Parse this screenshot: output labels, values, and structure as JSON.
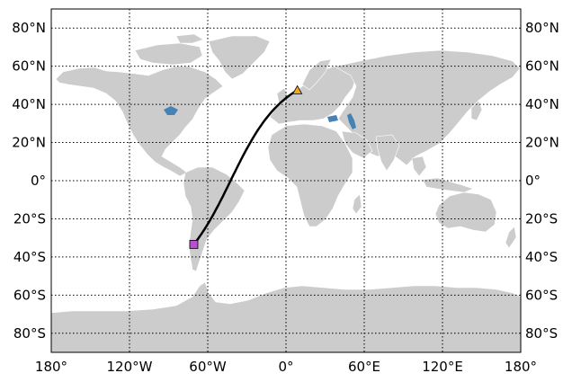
{
  "map": {
    "projection": "equirectangular",
    "lon_range": [
      -180,
      180
    ],
    "lat_range": [
      -90,
      90
    ],
    "land_color": "#cccccc",
    "water_color": "#4682b4",
    "grid": "dotted",
    "lat_ticks": [
      {
        "lat": 80,
        "label": "80°N"
      },
      {
        "lat": 60,
        "label": "60°N"
      },
      {
        "lat": 40,
        "label": "40°N"
      },
      {
        "lat": 20,
        "label": "20°N"
      },
      {
        "lat": 0,
        "label": "0°"
      },
      {
        "lat": -20,
        "label": "20°S"
      },
      {
        "lat": -40,
        "label": "40°S"
      },
      {
        "lat": -60,
        "label": "60°S"
      },
      {
        "lat": -80,
        "label": "80°S"
      }
    ],
    "lon_ticks": [
      {
        "lon": -180,
        "label": "180°"
      },
      {
        "lon": -120,
        "label": "120°W"
      },
      {
        "lon": -60,
        "label": "60°W"
      },
      {
        "lon": 0,
        "label": "0°"
      },
      {
        "lon": 60,
        "label": "60°E"
      },
      {
        "lon": 120,
        "label": "120°E"
      },
      {
        "lon": 180,
        "label": "180°"
      }
    ],
    "route": {
      "color": "#000000",
      "start": {
        "lon": -70.7,
        "lat": -33.4,
        "marker": "square",
        "color": "#b84fd1"
      },
      "end": {
        "lon": 8.7,
        "lat": 47.4,
        "marker": "triangle",
        "color": "#f5a623"
      }
    }
  }
}
